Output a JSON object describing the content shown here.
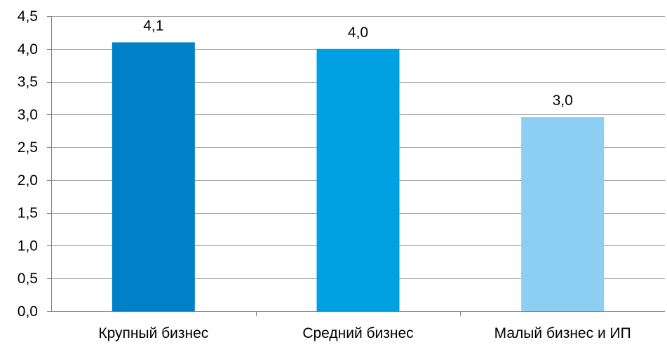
{
  "chart_data": {
    "type": "bar",
    "categories": [
      "Крупный бизнес",
      "Средний бизнес",
      "Малый бизнес и ИП"
    ],
    "values": [
      4.1,
      4.0,
      2.96
    ],
    "data_labels": [
      "4,1",
      "4,0",
      "3,0"
    ],
    "bar_colors": [
      "#0080c6",
      "#00a0e2",
      "#8ccff3"
    ],
    "ylim": [
      0,
      4.5
    ],
    "y_ticks": [
      0,
      0.5,
      1.0,
      1.5,
      2.0,
      2.5,
      3.0,
      3.5,
      4.0,
      4.5
    ],
    "y_tick_labels": [
      "0,0",
      "0,5",
      "1,0",
      "1,5",
      "2,0",
      "2,5",
      "3,0",
      "3,5",
      "4,0",
      "4,5"
    ],
    "grid": true,
    "legend": "none"
  }
}
